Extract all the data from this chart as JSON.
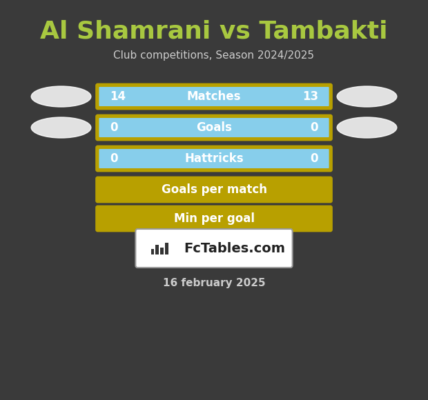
{
  "title": "Al Shamrani vs Tambakti",
  "subtitle": "Club competitions, Season 2024/2025",
  "date": "16 february 2025",
  "background_color": "#3a3a3a",
  "title_color": "#a8c840",
  "subtitle_color": "#cccccc",
  "date_color": "#cccccc",
  "rows": [
    {
      "label": "Matches",
      "left_val": "14",
      "right_val": "13",
      "bar_color": "#87CEEB",
      "border_color": "#b8a000",
      "has_ovals": true
    },
    {
      "label": "Goals",
      "left_val": "0",
      "right_val": "0",
      "bar_color": "#87CEEB",
      "border_color": "#b8a000",
      "has_ovals": true
    },
    {
      "label": "Hattricks",
      "left_val": "0",
      "right_val": "0",
      "bar_color": "#87CEEB",
      "border_color": "#b8a000",
      "has_ovals": false
    },
    {
      "label": "Goals per match",
      "left_val": "",
      "right_val": "",
      "bar_color": "#b8a000",
      "border_color": "#b8a000",
      "has_ovals": false
    },
    {
      "label": "Min per goal",
      "left_val": "",
      "right_val": "",
      "bar_color": "#b8a000",
      "border_color": "#b8a000",
      "has_ovals": false
    }
  ],
  "oval_color": "#ffffff",
  "logo_box_color": "#ffffff",
  "logo_text": "FcTables.com",
  "logo_icon_color": "#333333"
}
